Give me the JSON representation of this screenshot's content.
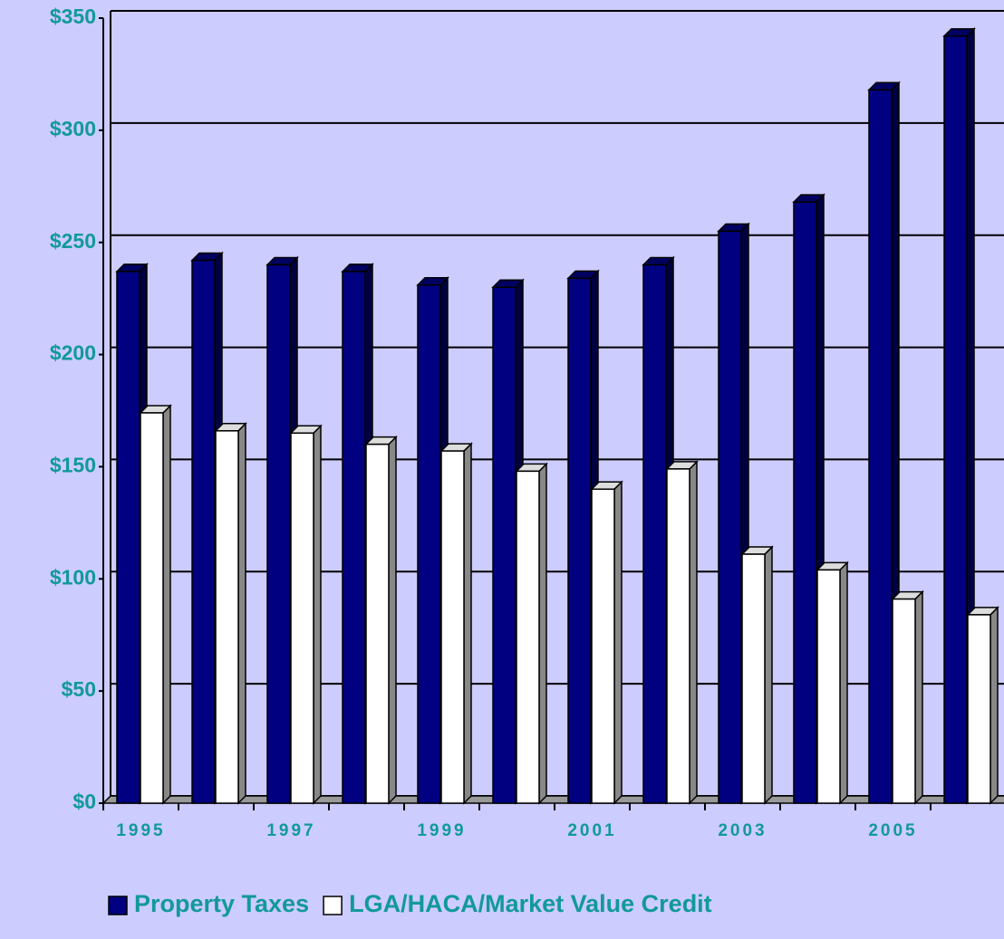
{
  "chart_data": {
    "type": "bar",
    "categories": [
      "1995",
      null,
      "1997",
      null,
      "1999",
      null,
      "2001",
      null,
      "2003",
      null,
      "2005",
      null
    ],
    "series": [
      {
        "name": "Property Taxes",
        "color": "#000080",
        "values": [
          237,
          242,
          240,
          237,
          231,
          230,
          234,
          240,
          255,
          268,
          318,
          342
        ]
      },
      {
        "name": "LGA/HACA/Market Value Credit",
        "color": "#ffffff",
        "values": [
          174,
          166,
          165,
          160,
          157,
          148,
          140,
          149,
          111,
          104,
          91,
          84
        ]
      }
    ],
    "ylim": [
      0,
      350
    ],
    "yticks": [
      {
        "value": 0,
        "label": "$0"
      },
      {
        "value": 50,
        "label": "$50"
      },
      {
        "value": 100,
        "label": "$100"
      },
      {
        "value": 150,
        "label": "$150"
      },
      {
        "value": 200,
        "label": "$200"
      },
      {
        "value": 250,
        "label": "$250"
      },
      {
        "value": 300,
        "label": "$300"
      },
      {
        "value": 350,
        "label": "$350"
      }
    ],
    "grid": true,
    "legend": "bottom"
  }
}
